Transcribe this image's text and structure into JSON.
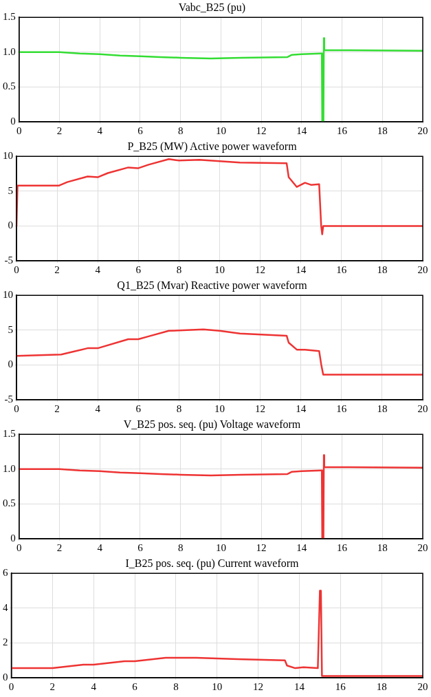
{
  "chart_data": [
    {
      "type": "line",
      "title": "Vabc_B25 (pu)",
      "xlim": [
        0,
        20
      ],
      "xticks": [
        0,
        2,
        4,
        6,
        8,
        10,
        12,
        14,
        16,
        18,
        20
      ],
      "ylim": [
        0,
        1.5
      ],
      "yticks": [
        0,
        {
          "value": 0.5,
          "label": "0.5"
        },
        {
          "value": 1,
          "label": "1.0"
        },
        {
          "value": 1.5,
          "label": "1.5"
        }
      ],
      "grid": true,
      "legend": false,
      "marker": "none",
      "line_style": "solid",
      "series": [
        {
          "color": "#33dd33",
          "x": [
            0,
            2,
            3,
            4,
            5,
            6,
            7,
            8,
            9.5,
            11,
            13.3,
            13.5,
            14,
            14.95,
            15.0,
            15.02,
            15.08,
            15.1,
            15.12,
            20
          ],
          "values": [
            1.0,
            1.0,
            0.98,
            0.97,
            0.95,
            0.94,
            0.93,
            0.92,
            0.91,
            0.92,
            0.93,
            0.96,
            0.97,
            0.98,
            0.98,
            0,
            0,
            1.2,
            1.03,
            1.02
          ]
        }
      ]
    },
    {
      "type": "line",
      "title": "P_B25 (MW) Active power waveform",
      "xlim": [
        0,
        20
      ],
      "xticks": [
        0,
        2,
        4,
        6,
        8,
        10,
        12,
        14,
        16,
        18,
        20
      ],
      "ylim": [
        -5,
        10
      ],
      "yticks": [
        -5,
        0,
        5,
        10
      ],
      "grid": true,
      "legend": false,
      "marker": "none",
      "line_style": "solid",
      "series": [
        {
          "color": "#ee3333",
          "x": [
            0,
            0.05,
            2.1,
            2.5,
            3.5,
            4,
            4.5,
            5.5,
            6,
            6.5,
            7.5,
            8,
            9,
            10,
            11,
            13.3,
            13.4,
            13.8,
            14.2,
            14.5,
            14.9,
            15.0,
            15.05,
            15.1,
            20
          ],
          "values": [
            0,
            5.8,
            5.8,
            6.3,
            7.1,
            7.0,
            7.6,
            8.4,
            8.3,
            8.8,
            9.6,
            9.4,
            9.5,
            9.3,
            9.1,
            9.0,
            7.0,
            5.6,
            6.2,
            5.9,
            6.0,
            0,
            -1.2,
            0,
            0
          ]
        }
      ]
    },
    {
      "type": "line",
      "title": "Q1_B25 (Mvar) Reactive power waveform",
      "xlim": [
        0,
        20
      ],
      "xticks": [
        0,
        2,
        4,
        6,
        8,
        10,
        12,
        14,
        16,
        18,
        20
      ],
      "ylim": [
        -5,
        10
      ],
      "yticks": [
        -5,
        0,
        5,
        10
      ],
      "grid": true,
      "legend": false,
      "marker": "none",
      "line_style": "solid",
      "series": [
        {
          "color": "#ee3333",
          "x": [
            0,
            2.2,
            3.5,
            4,
            5.5,
            6,
            6.5,
            7.5,
            9.2,
            10,
            11,
            13.3,
            13.4,
            13.8,
            14.2,
            14.9,
            15.0,
            15.1,
            20
          ],
          "values": [
            1.3,
            1.5,
            2.4,
            2.4,
            3.7,
            3.7,
            4.1,
            4.9,
            5.1,
            4.9,
            4.5,
            4.2,
            3.2,
            2.2,
            2.2,
            2.0,
            0.1,
            -1.4,
            -1.4
          ]
        }
      ]
    },
    {
      "type": "line",
      "title": "V_B25 pos. seq. (pu) Voltage waveform",
      "xlim": [
        0,
        20
      ],
      "xticks": [
        0,
        2,
        4,
        6,
        8,
        10,
        12,
        14,
        16,
        18,
        20
      ],
      "ylim": [
        0,
        1.5
      ],
      "yticks": [
        0,
        {
          "value": 0.5,
          "label": "0.5"
        },
        {
          "value": 1,
          "label": "1.0"
        },
        {
          "value": 1.5,
          "label": "1.5"
        }
      ],
      "grid": true,
      "legend": false,
      "marker": "none",
      "line_style": "solid",
      "series": [
        {
          "color": "#ee3333",
          "x": [
            0,
            2,
            3,
            4,
            5,
            6,
            7,
            8,
            9.5,
            11,
            13.3,
            13.5,
            14,
            14.95,
            15.0,
            15.02,
            15.08,
            15.1,
            15.12,
            20
          ],
          "values": [
            1.0,
            1.0,
            0.98,
            0.97,
            0.95,
            0.94,
            0.93,
            0.92,
            0.91,
            0.92,
            0.93,
            0.96,
            0.97,
            0.98,
            0.98,
            0,
            0,
            1.2,
            1.03,
            1.02
          ]
        }
      ]
    },
    {
      "type": "line",
      "title": "I_B25 pos. seq. (pu) Current waveform",
      "xlim": [
        0,
        20
      ],
      "xticks": [
        0,
        2,
        4,
        6,
        8,
        10,
        12,
        14,
        16,
        18,
        20
      ],
      "ylim": [
        0,
        6
      ],
      "yticks": [
        0,
        2,
        4,
        6
      ],
      "grid": true,
      "legend": false,
      "marker": "none",
      "line_style": "solid",
      "series": [
        {
          "color": "#ee3333",
          "x": [
            0,
            2,
            3.5,
            4,
            5.5,
            6,
            7.5,
            9,
            11,
            13.3,
            13.4,
            13.8,
            14.2,
            14.9,
            15.0,
            15.05,
            15.1,
            20
          ],
          "values": [
            0.55,
            0.55,
            0.75,
            0.75,
            0.95,
            0.95,
            1.15,
            1.15,
            1.07,
            1.0,
            0.7,
            0.55,
            0.6,
            0.55,
            5.0,
            5.0,
            0.1,
            0.1
          ]
        }
      ]
    }
  ]
}
